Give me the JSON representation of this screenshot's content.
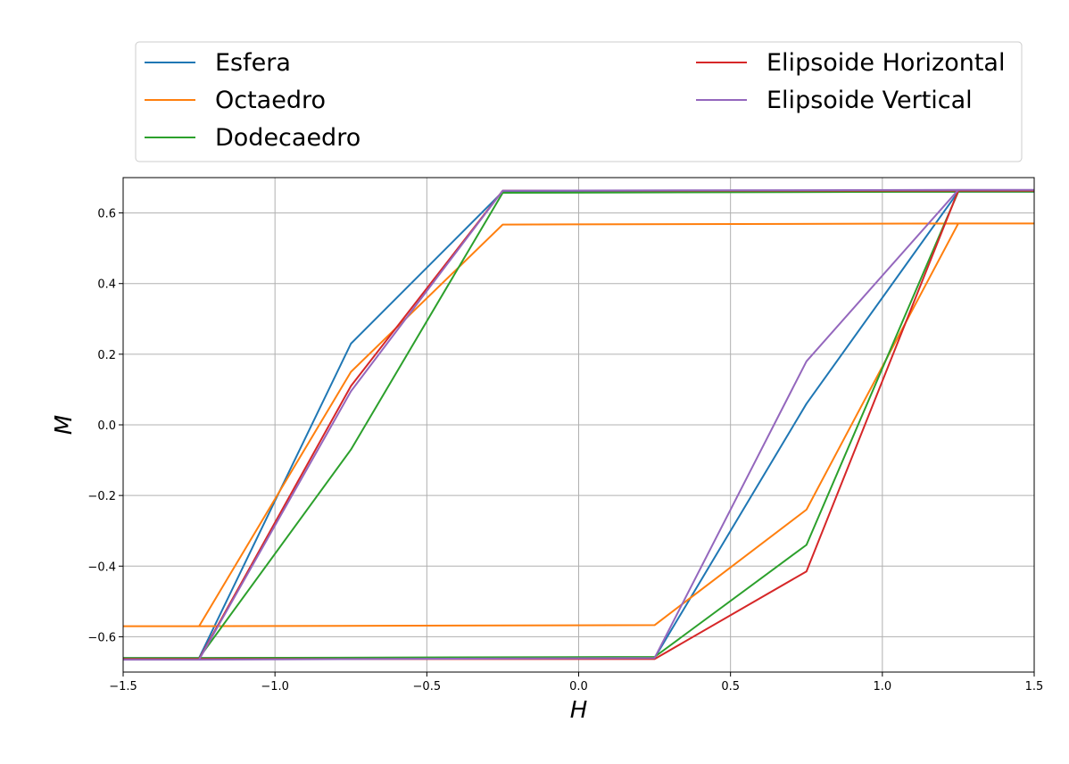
{
  "chart_data": {
    "type": "line",
    "title": "",
    "xlabel": "H",
    "ylabel": "M",
    "xlim": [
      -1.5,
      1.5
    ],
    "ylim": [
      -0.7,
      0.7
    ],
    "grid": true,
    "legend_position": "top",
    "xticks": [
      -1.5,
      -1.0,
      -0.5,
      0.0,
      0.5,
      1.0,
      1.5
    ],
    "yticks": [
      -0.6,
      -0.4,
      -0.2,
      0.0,
      0.2,
      0.4,
      0.6
    ],
    "xtick_labels": [
      "−1.5",
      "−1.0",
      "−0.5",
      "0.0",
      "0.5",
      "1.0",
      "1.5"
    ],
    "ytick_labels": [
      "−0.6",
      "−0.4",
      "−0.2",
      "0.0",
      "0.2",
      "0.4",
      "0.6"
    ],
    "series": [
      {
        "name": "Esfera",
        "color": "#1f77b4",
        "x": [
          1.5,
          1.25,
          -0.25,
          -0.75,
          -1.25,
          -1.5,
          -1.25,
          0.25,
          0.75,
          1.25,
          1.5
        ],
        "y": [
          0.66,
          0.66,
          0.66,
          0.23,
          -0.66,
          -0.66,
          -0.66,
          -0.66,
          0.06,
          0.66,
          0.66
        ]
      },
      {
        "name": "Octaedro",
        "color": "#ff7f0e",
        "x": [
          1.5,
          1.25,
          -0.25,
          -0.75,
          -1.25,
          -1.5,
          -1.25,
          0.25,
          0.75,
          1.25,
          1.5
        ],
        "y": [
          0.57,
          0.57,
          0.567,
          0.15,
          -0.57,
          -0.57,
          -0.57,
          -0.567,
          -0.24,
          0.57,
          0.57
        ]
      },
      {
        "name": "Dodecaedro",
        "color": "#2ca02c",
        "x": [
          1.5,
          1.25,
          -0.25,
          -0.75,
          -1.25,
          -1.5,
          -1.25,
          0.25,
          0.75,
          1.25,
          1.5
        ],
        "y": [
          0.66,
          0.66,
          0.657,
          -0.07,
          -0.66,
          -0.66,
          -0.66,
          -0.657,
          -0.34,
          0.66,
          0.66
        ]
      },
      {
        "name": "Elipsoide Horizontal",
        "color": "#d62728",
        "x": [
          1.5,
          1.25,
          -0.25,
          -0.75,
          -1.25,
          -1.5,
          -1.25,
          0.25,
          0.75,
          1.25,
          1.5
        ],
        "y": [
          0.663,
          0.663,
          0.663,
          0.11,
          -0.663,
          -0.663,
          -0.663,
          -0.663,
          -0.415,
          0.663,
          0.663
        ]
      },
      {
        "name": "Elipsoide Vertical",
        "color": "#9467bd",
        "x": [
          1.5,
          1.25,
          -0.25,
          -0.75,
          -1.25,
          -1.5,
          -1.25,
          0.25,
          0.75,
          1.25,
          1.5
        ],
        "y": [
          0.665,
          0.665,
          0.663,
          0.095,
          -0.665,
          -0.665,
          -0.665,
          -0.66,
          0.18,
          0.665,
          0.665
        ]
      }
    ]
  }
}
